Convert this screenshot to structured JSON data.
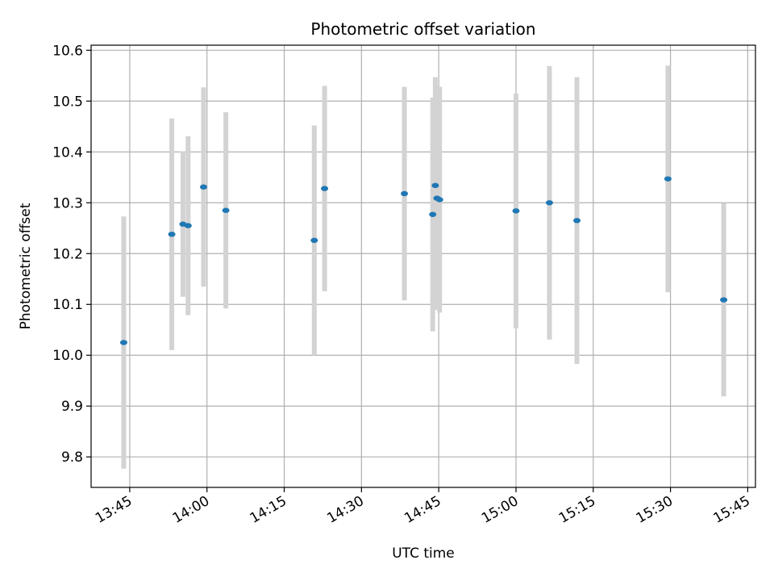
{
  "chart_data": {
    "type": "scatter",
    "title": "Photometric offset variation",
    "xlabel": "UTC time",
    "ylabel": "Photometric offset",
    "xlim": [
      "13:37:30",
      "15:46:30"
    ],
    "ylim": [
      9.74,
      10.61
    ],
    "x_ticks": [
      "13:45",
      "14:00",
      "14:15",
      "14:30",
      "14:45",
      "15:00",
      "15:15",
      "15:30",
      "15:45"
    ],
    "y_ticks": [
      "9.8",
      "9.9",
      "10.0",
      "10.1",
      "10.2",
      "10.3",
      "10.4",
      "10.5",
      "10.6"
    ],
    "grid": true,
    "colors": {
      "point": "#1f77b4",
      "errorbar": "#d3d3d3",
      "grid": "#b0b0b0"
    },
    "points": [
      {
        "x": "13:43:50",
        "y": 10.025,
        "err": 0.248
      },
      {
        "x": "13:53:10",
        "y": 10.238,
        "err": 0.228
      },
      {
        "x": "13:55:20",
        "y": 10.258,
        "err": 0.143
      },
      {
        "x": "13:56:20",
        "y": 10.255,
        "err": 0.176
      },
      {
        "x": "13:59:20",
        "y": 10.331,
        "err": 0.196
      },
      {
        "x": "14:03:40",
        "y": 10.285,
        "err": 0.193
      },
      {
        "x": "14:20:50",
        "y": 10.226,
        "err": 0.226
      },
      {
        "x": "14:22:50",
        "y": 10.328,
        "err": 0.202
      },
      {
        "x": "14:38:20",
        "y": 10.318,
        "err": 0.21
      },
      {
        "x": "14:43:50",
        "y": 10.277,
        "err": 0.23
      },
      {
        "x": "14:44:20",
        "y": 10.334,
        "err": 0.213
      },
      {
        "x": "14:44:40",
        "y": 10.309,
        "err": 0.22
      },
      {
        "x": "14:45:10",
        "y": 10.306,
        "err": 0.222
      },
      {
        "x": "15:00:00",
        "y": 10.284,
        "err": 0.231
      },
      {
        "x": "15:06:30",
        "y": 10.3,
        "err": 0.269
      },
      {
        "x": "15:11:50",
        "y": 10.265,
        "err": 0.282
      },
      {
        "x": "15:29:30",
        "y": 10.347,
        "err": 0.223
      },
      {
        "x": "15:40:20",
        "y": 10.109,
        "err": 0.19
      }
    ]
  }
}
